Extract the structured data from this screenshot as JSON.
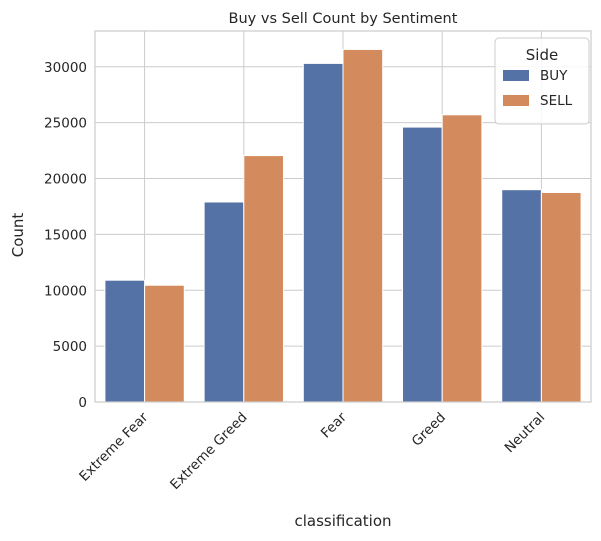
{
  "chart_data": {
    "type": "bar",
    "title": "Buy vs Sell Count by Sentiment",
    "xlabel": "classification",
    "ylabel": "Count",
    "categories": [
      "Extreme Fear",
      "Extreme Greed",
      "Fear",
      "Greed",
      "Neutral"
    ],
    "series": [
      {
        "name": "BUY",
        "values": [
          10900,
          17900,
          30300,
          24600,
          19000
        ],
        "color": "#5572a6"
      },
      {
        "name": "SELL",
        "values": [
          10450,
          22050,
          31550,
          25700,
          18750
        ],
        "color": "#d38b5d"
      }
    ],
    "ylim": [
      0,
      33200
    ],
    "yticks": [
      0,
      5000,
      10000,
      15000,
      20000,
      25000,
      30000
    ],
    "grid": true,
    "legend": {
      "title": "Side",
      "placement": "top-right"
    }
  }
}
